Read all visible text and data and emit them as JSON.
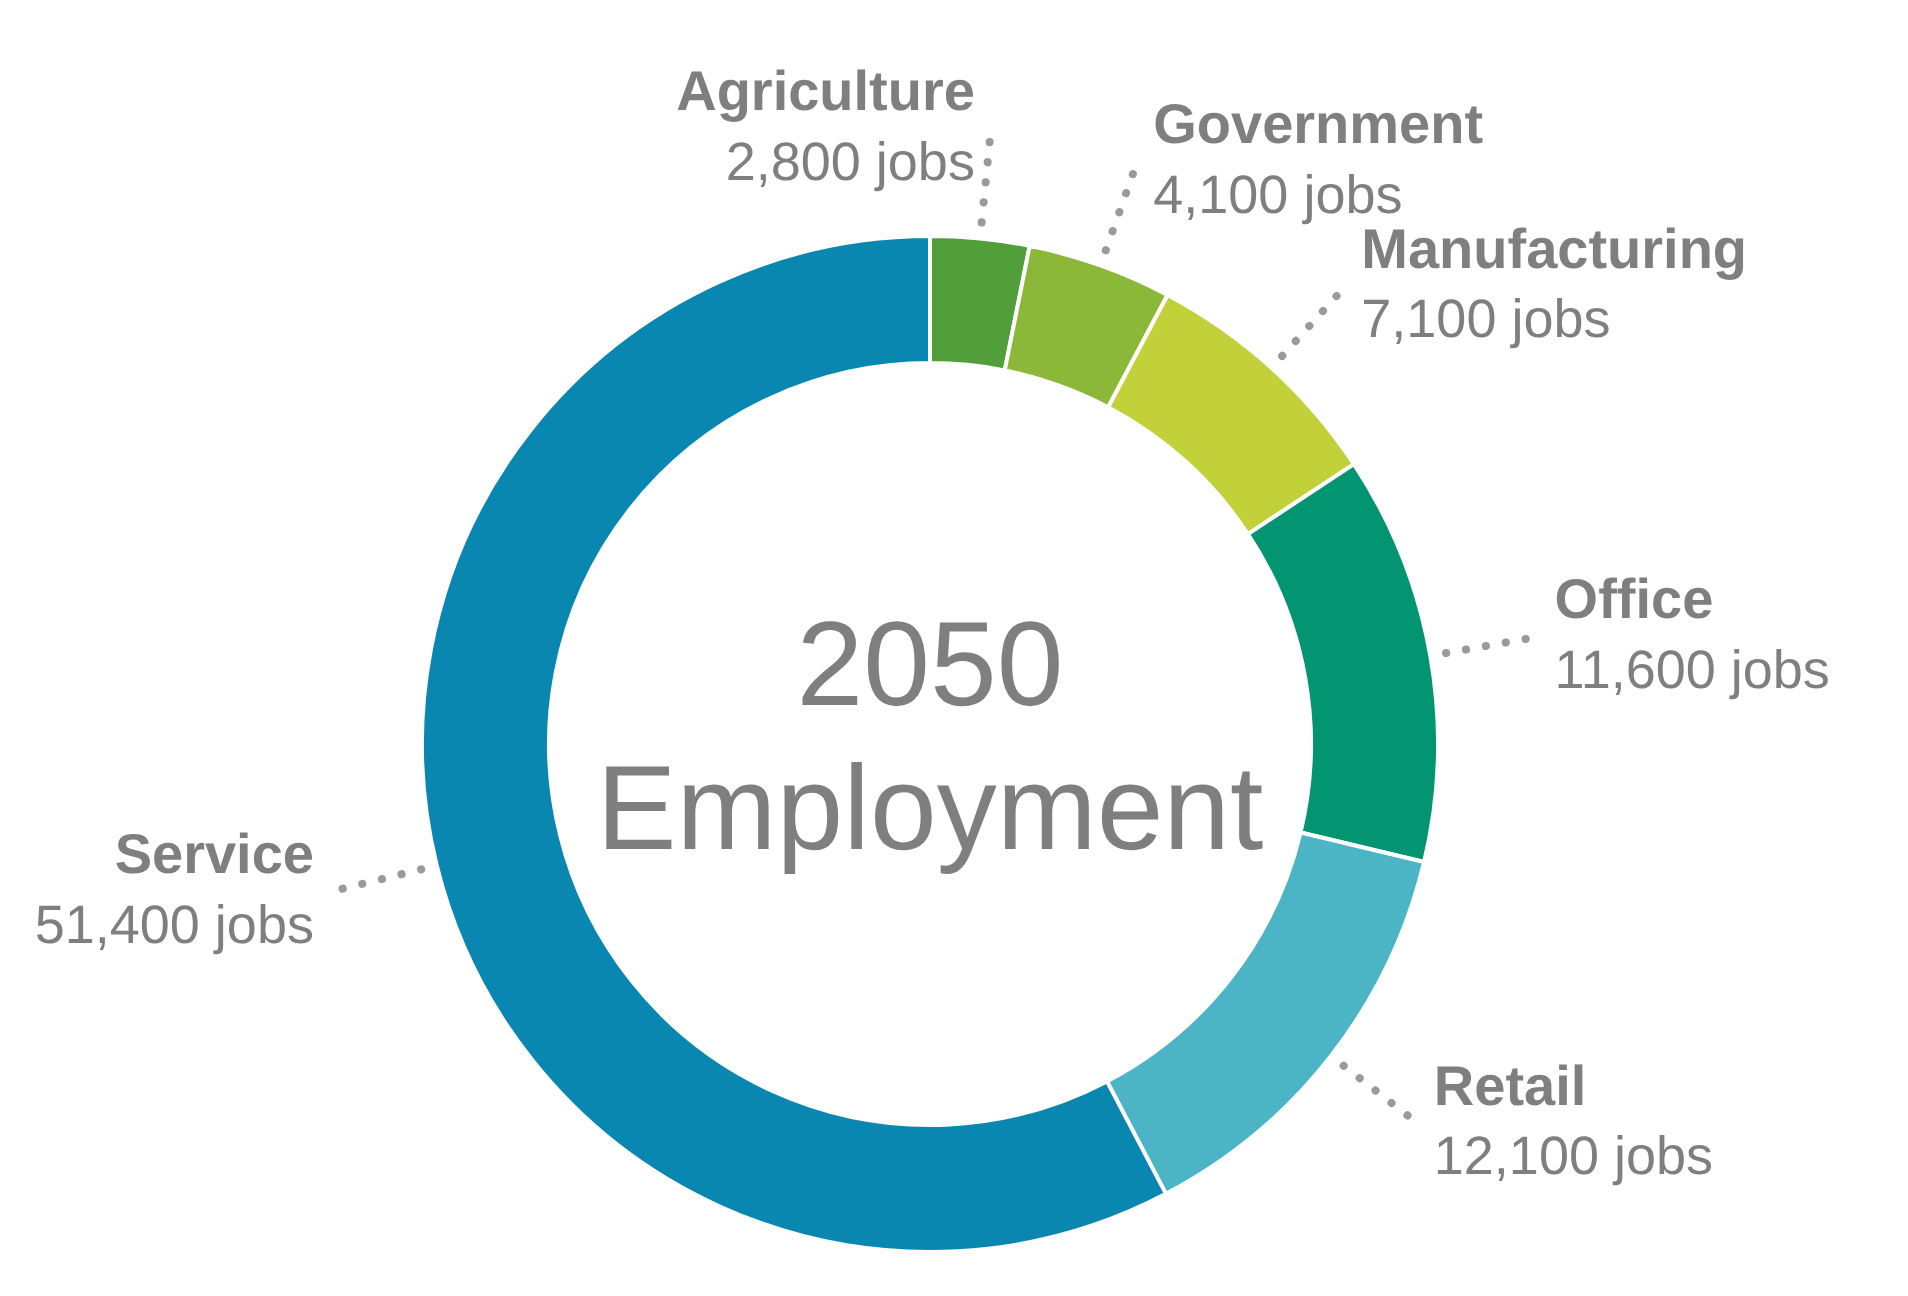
{
  "chart_data": {
    "type": "donut",
    "title": "2050 Employment",
    "categories": [
      "Agriculture",
      "Government",
      "Manufacturing",
      "Office",
      "Retail",
      "Service"
    ],
    "values": [
      2800,
      4100,
      7100,
      11600,
      12100,
      51400
    ],
    "value_labels": [
      "2,800 jobs",
      "4,100 jobs",
      "7,100 jobs",
      "11,600 jobs",
      "12,100 jobs",
      "51,400 jobs"
    ],
    "colors": [
      "#529e3b",
      "#8cb83a",
      "#c2d13a",
      "#039572",
      "#4bb5c5",
      "#0a87b0"
    ],
    "legend": false
  }
}
